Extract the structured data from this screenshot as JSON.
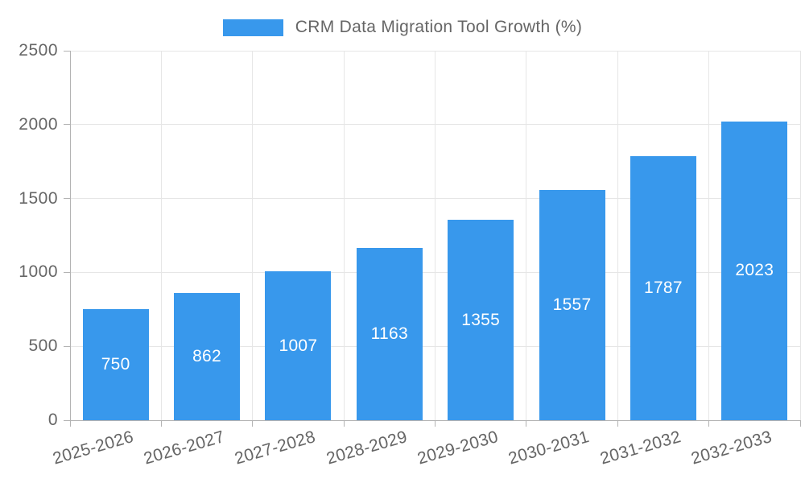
{
  "legend": {
    "label": "CRM Data Migration Tool Growth (%)"
  },
  "chart_data": {
    "type": "bar",
    "title": "CRM Data Migration Tool Growth (%)",
    "categories": [
      "2025-2026",
      "2026-2027",
      "2027-2028",
      "2028-2029",
      "2029-2030",
      "2030-2031",
      "2031-2032",
      "2032-2033"
    ],
    "values": [
      750,
      862,
      1007,
      1163,
      1355,
      1557,
      1787,
      2023
    ],
    "xlabel": "",
    "ylabel": "",
    "ylim": [
      0,
      2500
    ],
    "yticks": [
      0,
      500,
      1000,
      1500,
      2000,
      2500
    ],
    "grid": true,
    "legend_position": "top",
    "bar_labels_visible": true,
    "colors": {
      "bar": "#3898ec",
      "bar_label": "#ffffff",
      "axis_text": "#666666",
      "grid_line": "#e6e6e6",
      "axis_line": "#b3b3b3",
      "background": "#ffffff"
    }
  }
}
